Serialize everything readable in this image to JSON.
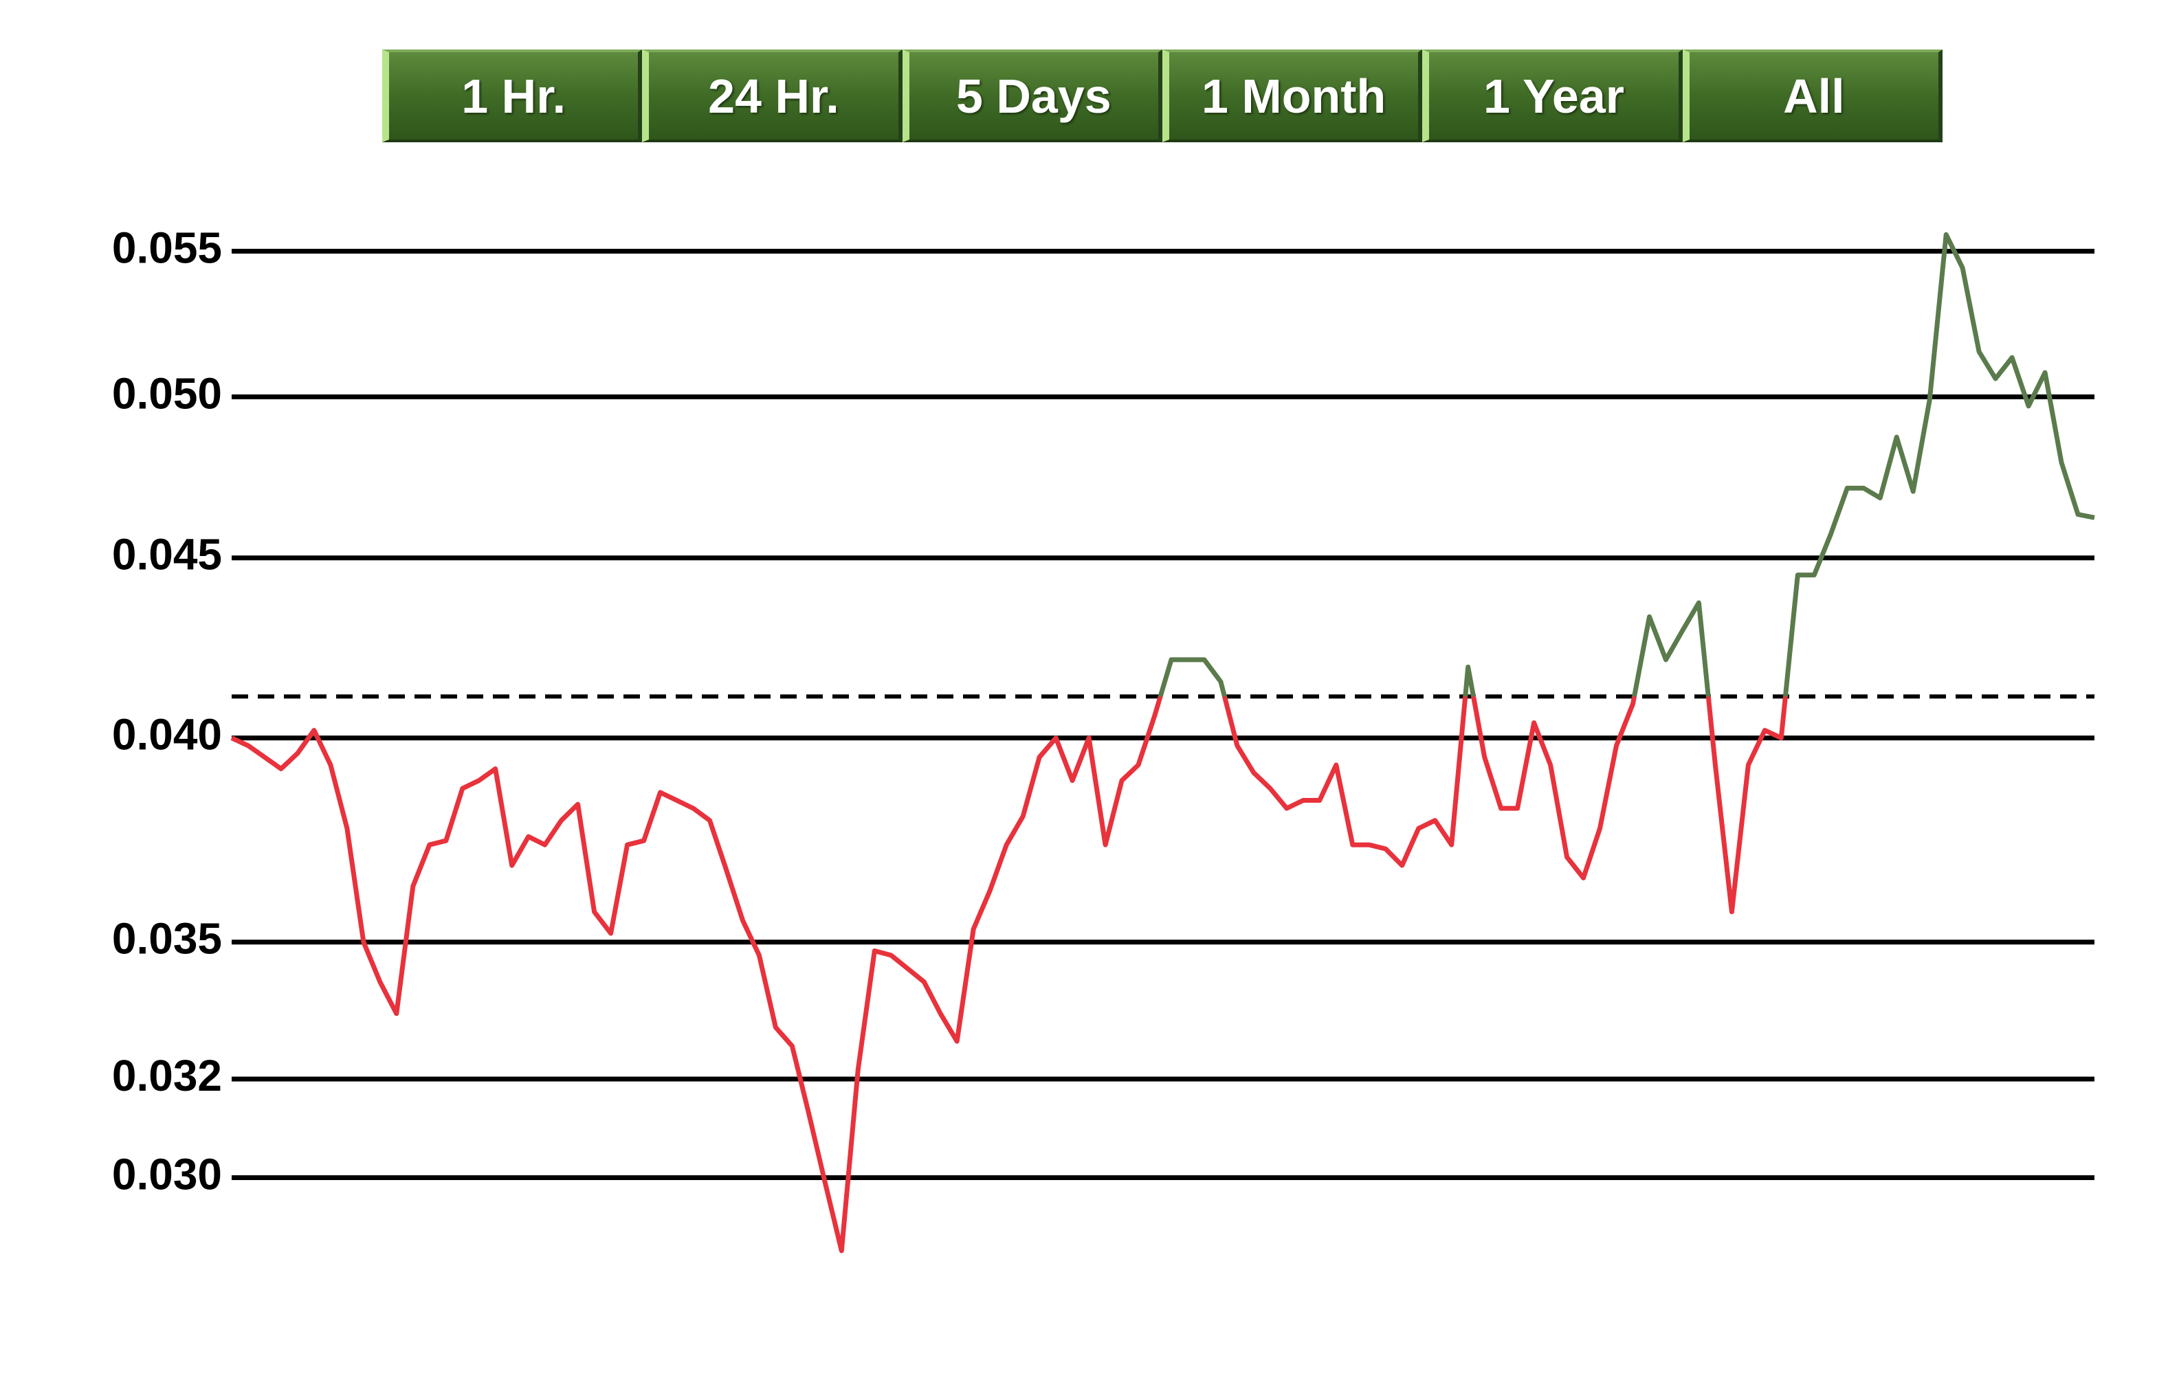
{
  "buttons": [
    "1 Hr.",
    "24 Hr.",
    "5 Days",
    "1 Month",
    "1 Year",
    "All"
  ],
  "chart_data": {
    "type": "line",
    "log_scale": true,
    "grid": true,
    "ylim": [
      0.028,
      0.057
    ],
    "yticks": [
      {
        "value": 0.055,
        "label": "0.055"
      },
      {
        "value": 0.05,
        "label": "0.050"
      },
      {
        "value": 0.045,
        "label": "0.045"
      },
      {
        "value": 0.04,
        "label": "0.040"
      },
      {
        "value": 0.035,
        "label": "0.035"
      },
      {
        "value": 0.032,
        "label": "0.032"
      },
      {
        "value": 0.03,
        "label": "0.030"
      }
    ],
    "reference_line": 0.0411,
    "line_colors": {
      "above": "#5b7b4c",
      "below": "#e8323c"
    },
    "values": [
      0.04,
      0.0398,
      0.0395,
      0.0392,
      0.0396,
      0.0402,
      0.0393,
      0.0377,
      0.035,
      0.0341,
      0.0334,
      0.0363,
      0.0373,
      0.0374,
      0.0387,
      0.0389,
      0.0392,
      0.0368,
      0.0375,
      0.0373,
      0.0379,
      0.0383,
      0.0357,
      0.0352,
      0.0373,
      0.0374,
      0.0386,
      0.0384,
      0.0382,
      0.0379,
      0.0367,
      0.0355,
      0.0347,
      0.0331,
      0.0327,
      0.0313,
      0.0299,
      0.0286,
      0.0322,
      0.0348,
      0.0347,
      0.0344,
      0.0341,
      0.0334,
      0.0328,
      0.0353,
      0.0362,
      0.0373,
      0.038,
      0.0395,
      0.04,
      0.0389,
      0.04,
      0.0373,
      0.0389,
      0.0393,
      0.0406,
      0.0421,
      0.0421,
      0.0421,
      0.0415,
      0.0398,
      0.0391,
      0.0387,
      0.0382,
      0.0384,
      0.0384,
      0.0393,
      0.0373,
      0.0373,
      0.0372,
      0.0368,
      0.0377,
      0.0379,
      0.0373,
      0.0419,
      0.0395,
      0.0382,
      0.0382,
      0.0404,
      0.0393,
      0.037,
      0.0365,
      0.0377,
      0.0398,
      0.0409,
      0.0433,
      0.0421,
      0.0429,
      0.0437,
      0.0393,
      0.0357,
      0.0393,
      0.0402,
      0.04,
      0.0445,
      0.0445,
      0.0457,
      0.0471,
      0.0471,
      0.0468,
      0.0487,
      0.047,
      0.0499,
      0.0556,
      0.0544,
      0.0515,
      0.0506,
      0.0513,
      0.0497,
      0.0508,
      0.0479,
      0.0463,
      0.0462
    ]
  }
}
